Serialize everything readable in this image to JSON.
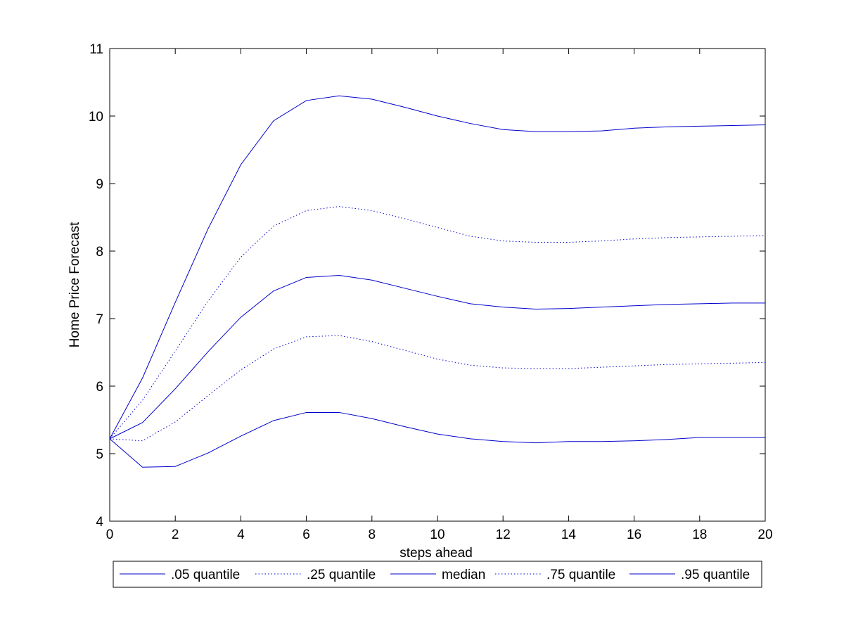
{
  "chart_data": {
    "type": "line",
    "xlabel": "steps ahead",
    "ylabel": "Home Price Forecast",
    "xlim": [
      0,
      20
    ],
    "ylim": [
      4,
      11
    ],
    "x_ticks": [
      0,
      2,
      4,
      6,
      8,
      10,
      12,
      14,
      16,
      18,
      20
    ],
    "y_ticks": [
      4,
      5,
      6,
      7,
      8,
      9,
      10,
      11
    ],
    "grid": false,
    "legend_position": "bottom-outside",
    "legend_orientation": "horizontal",
    "line_color": "#0000cc",
    "x": [
      0,
      1,
      2,
      3,
      4,
      5,
      6,
      7,
      8,
      9,
      10,
      11,
      12,
      13,
      14,
      15,
      16,
      17,
      18,
      19,
      20
    ],
    "series": [
      {
        "name": ".05 quantile",
        "style": "solid",
        "values": [
          5.22,
          4.8,
          4.81,
          5.01,
          5.26,
          5.49,
          5.61,
          5.61,
          5.52,
          5.4,
          5.29,
          5.22,
          5.18,
          5.16,
          5.18,
          5.18,
          5.19,
          5.21,
          5.24,
          5.24,
          5.24
        ]
      },
      {
        "name": ".25 quantile",
        "style": "dotted",
        "values": [
          5.22,
          5.19,
          5.47,
          5.86,
          6.24,
          6.55,
          6.73,
          6.75,
          6.66,
          6.53,
          6.4,
          6.31,
          6.27,
          6.26,
          6.26,
          6.28,
          6.3,
          6.32,
          6.33,
          6.34,
          6.35
        ]
      },
      {
        "name": "median",
        "style": "solid",
        "values": [
          5.22,
          5.46,
          5.96,
          6.51,
          7.02,
          7.41,
          7.61,
          7.64,
          7.57,
          7.45,
          7.33,
          7.22,
          7.17,
          7.14,
          7.15,
          7.17,
          7.19,
          7.21,
          7.22,
          7.23,
          7.23
        ]
      },
      {
        "name": ".75 quantile",
        "style": "dotted",
        "values": [
          5.22,
          5.79,
          6.52,
          7.26,
          7.91,
          8.37,
          8.6,
          8.66,
          8.6,
          8.48,
          8.35,
          8.22,
          8.15,
          8.13,
          8.13,
          8.15,
          8.18,
          8.2,
          8.21,
          8.22,
          8.23
        ]
      },
      {
        "name": ".95 quantile",
        "style": "solid",
        "values": [
          5.22,
          6.12,
          7.24,
          8.33,
          9.28,
          9.93,
          10.23,
          10.3,
          10.25,
          10.13,
          10.0,
          9.89,
          9.8,
          9.77,
          9.77,
          9.78,
          9.82,
          9.84,
          9.85,
          9.86,
          9.87
        ]
      }
    ]
  }
}
